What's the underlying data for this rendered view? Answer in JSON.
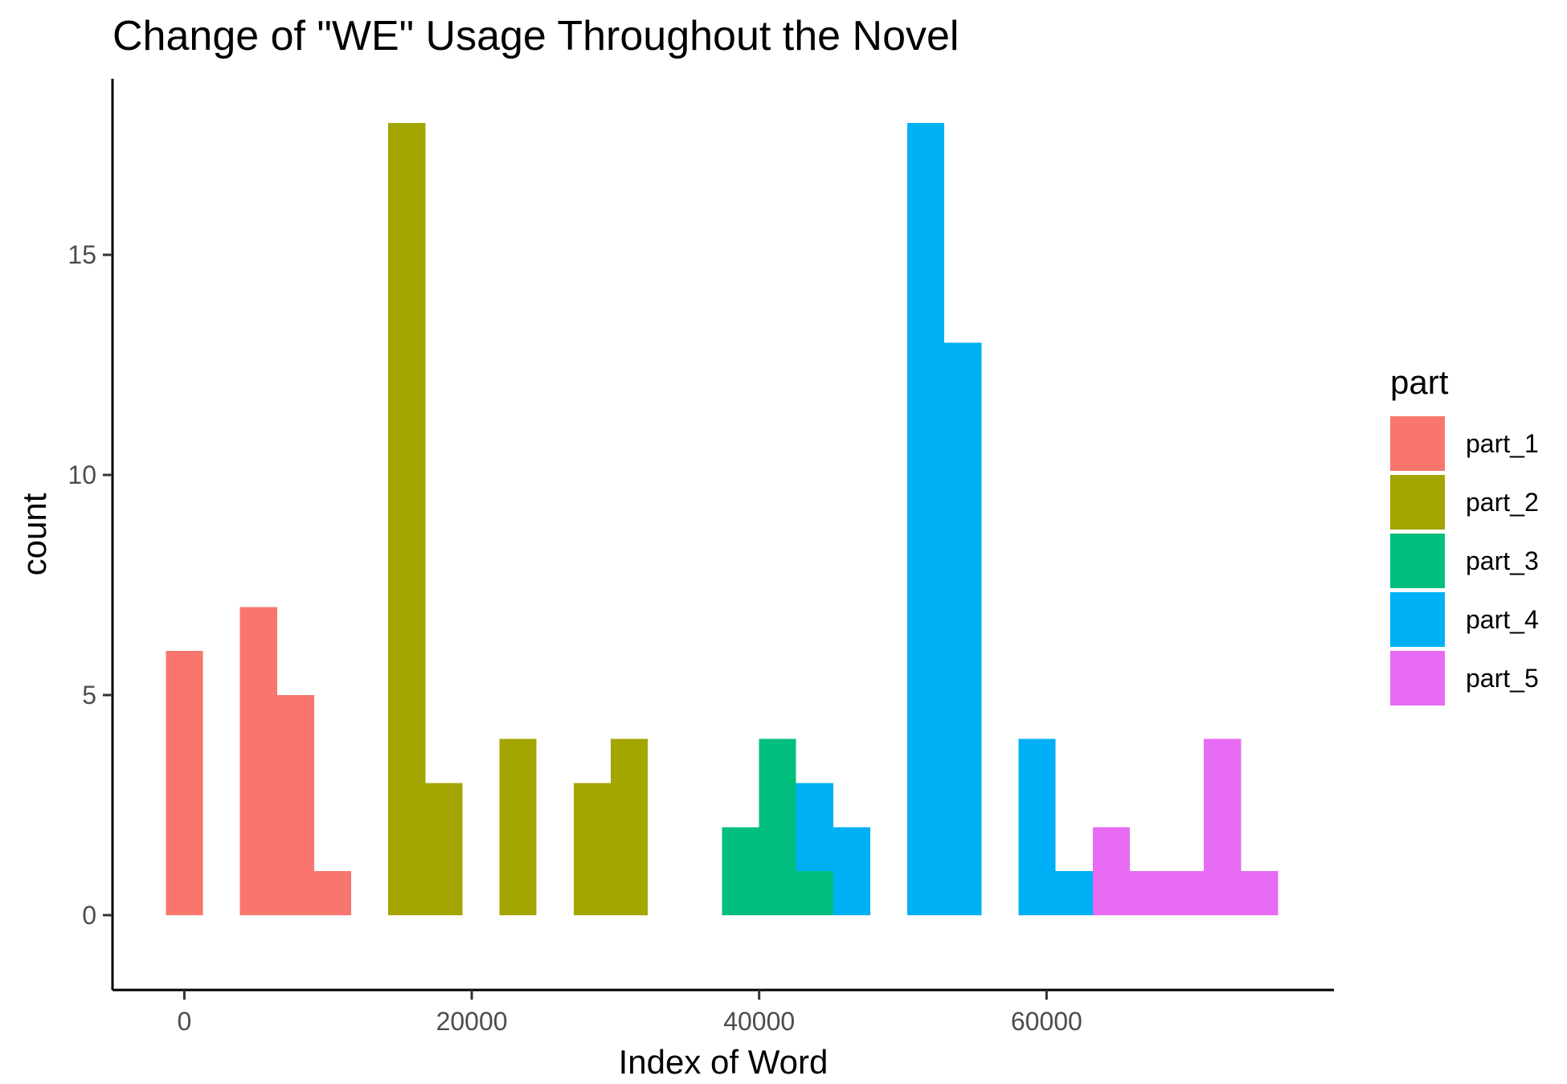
{
  "chart_data": {
    "type": "histogram",
    "title": "Change of \"WE\" Usage Throughout the Novel",
    "xlabel": "Index of Word",
    "ylabel": "count",
    "xlim": [
      -5000,
      80000
    ],
    "ylim": [
      -1.7,
      19
    ],
    "x_ticks": [
      0,
      20000,
      40000,
      60000
    ],
    "y_ticks": [
      0,
      5,
      10,
      15
    ],
    "grid": false,
    "legend": {
      "title": "part",
      "position": "right"
    },
    "bin_width": 2580,
    "series": [
      {
        "name": "part_1",
        "color": "#F8766D",
        "bins": [
          {
            "x": 0,
            "count": 6
          },
          {
            "x": 5160,
            "count": 7
          },
          {
            "x": 7740,
            "count": 5
          },
          {
            "x": 10320,
            "count": 1
          }
        ]
      },
      {
        "name": "part_2",
        "color": "#A3A500",
        "bins": [
          {
            "x": 15480,
            "count": 18
          },
          {
            "x": 18060,
            "count": 3
          },
          {
            "x": 23220,
            "count": 4
          },
          {
            "x": 28380,
            "count": 3
          },
          {
            "x": 30960,
            "count": 4
          }
        ]
      },
      {
        "name": "part_3",
        "color": "#00BF7D",
        "bins": [
          {
            "x": 38700,
            "count": 2
          },
          {
            "x": 41280,
            "count": 4
          },
          {
            "x": 43860,
            "count": 1
          }
        ]
      },
      {
        "name": "part_4",
        "color": "#00B0F6",
        "bins": [
          {
            "x": 43860,
            "count": 2
          },
          {
            "x": 46440,
            "count": 2
          },
          {
            "x": 51600,
            "count": 18
          },
          {
            "x": 54180,
            "count": 13
          },
          {
            "x": 59340,
            "count": 4
          },
          {
            "x": 61920,
            "count": 1
          }
        ]
      },
      {
        "name": "part_5",
        "color": "#E76BF3",
        "bins": [
          {
            "x": 64500,
            "count": 2
          },
          {
            "x": 67080,
            "count": 1
          },
          {
            "x": 69660,
            "count": 1
          },
          {
            "x": 72240,
            "count": 4
          },
          {
            "x": 74820,
            "count": 1
          }
        ]
      }
    ]
  }
}
